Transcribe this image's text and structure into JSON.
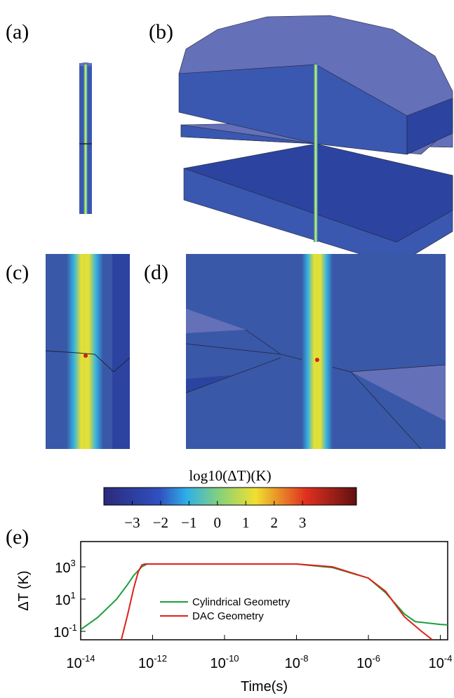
{
  "panels": [
    "(a)",
    "(b)",
    "(c)",
    "(d)",
    "(e)"
  ],
  "colorbar": {
    "title": "log10(ΔT)(K)",
    "lim": [
      -4,
      4.9
    ],
    "ticks": [
      {
        "value": -3,
        "label": "−3"
      },
      {
        "value": -2,
        "label": "−2"
      },
      {
        "value": -1,
        "label": "−1"
      },
      0,
      1,
      2,
      3
    ]
  },
  "chart_data": {
    "type": "line",
    "xlabel": "Time(s)",
    "ylabel": "ΔT (K)",
    "xscale": "log",
    "yscale": "log",
    "xlim": [
      1e-14,
      0.00016
    ],
    "ylim": [
      0.03,
      37000
    ],
    "xticks": [
      {
        "value": 1e-14,
        "label": "10",
        "exponent": "-14"
      },
      {
        "value": 1e-12,
        "label": "10",
        "exponent": "-12"
      },
      {
        "value": 1e-10,
        "label": "10",
        "exponent": "-10"
      },
      {
        "value": 1e-08,
        "label": "10",
        "exponent": "-8"
      },
      {
        "value": 1e-06,
        "label": "10",
        "exponent": "-6"
      },
      {
        "value": 0.0001,
        "label": "10",
        "exponent": "-4"
      }
    ],
    "yticks": [
      {
        "value": 0.1,
        "label": "10",
        "exponent": "-1"
      },
      {
        "value": 10,
        "label": "10",
        "exponent": "1"
      },
      {
        "value": 1000,
        "label": "10",
        "exponent": "3"
      }
    ],
    "legend": "center",
    "series": [
      {
        "name": "Cylindrical Geometry",
        "color": "#1a9f3a",
        "x": [
          1e-14,
          3e-14,
          1e-13,
          2e-13,
          3e-13,
          5e-13,
          7e-13,
          1e-10,
          1e-08,
          1e-07,
          1e-06,
          3e-06,
          1e-05,
          2e-05,
          0.0001,
          0.00016
        ],
        "values": [
          0.13,
          0.74,
          10,
          80,
          300,
          1000,
          1500,
          1500,
          1500,
          900,
          200,
          25,
          1.2,
          0.4,
          0.27,
          0.25
        ]
      },
      {
        "name": "DAC Geometry",
        "color": "#e0201b",
        "x": [
          1.35e-13,
          2e-13,
          3e-13,
          4e-13,
          5e-13,
          6e-13,
          1e-10,
          1e-08,
          1e-07,
          1e-06,
          3e-06,
          1e-05,
          3e-05,
          6e-05
        ],
        "values": [
          0.03,
          1,
          50,
          500,
          1300,
          1500,
          1500,
          1500,
          1000,
          200,
          30,
          0.8,
          0.1,
          0.03
        ]
      }
    ]
  }
}
